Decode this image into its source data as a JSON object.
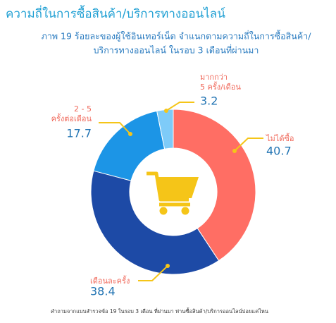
{
  "chart_data": {
    "type": "donut",
    "title": "ความถี่ในการซื้อสินค้า/บริการทางออนไลน์",
    "subtitle": [
      "ภาพ 19 ร้อยละของผู้ใช้อินเทอร์เน็ต จำแนกตามความถี่ในการซื้อสินค้า/",
      "บริการทางออนไลน์ ในรอบ 3 เดือนที่ผ่านมา"
    ],
    "categories": [
      [
        "ไม่ได้ซื้อ"
      ],
      [
        "เดือนละครั้ง"
      ],
      [
        "2 - 5",
        "ครั้งต่อเดือน"
      ],
      [
        "มากกว่า",
        "5 ครั้ง/เดือน"
      ]
    ],
    "values": [
      40.7,
      38.4,
      17.7,
      3.2
    ],
    "colors": [
      "#ff6e64",
      "#1d4aa6",
      "#1c95e6",
      "#7ecbf8"
    ],
    "footnote": "คำถามจากแบบสำรวจข้อ 19 ในรอบ 3 เดือน ที่ผ่านมา ท่านซื้อสินค้า/บริการออนไลน์บ่อยแค่ไหน"
  }
}
